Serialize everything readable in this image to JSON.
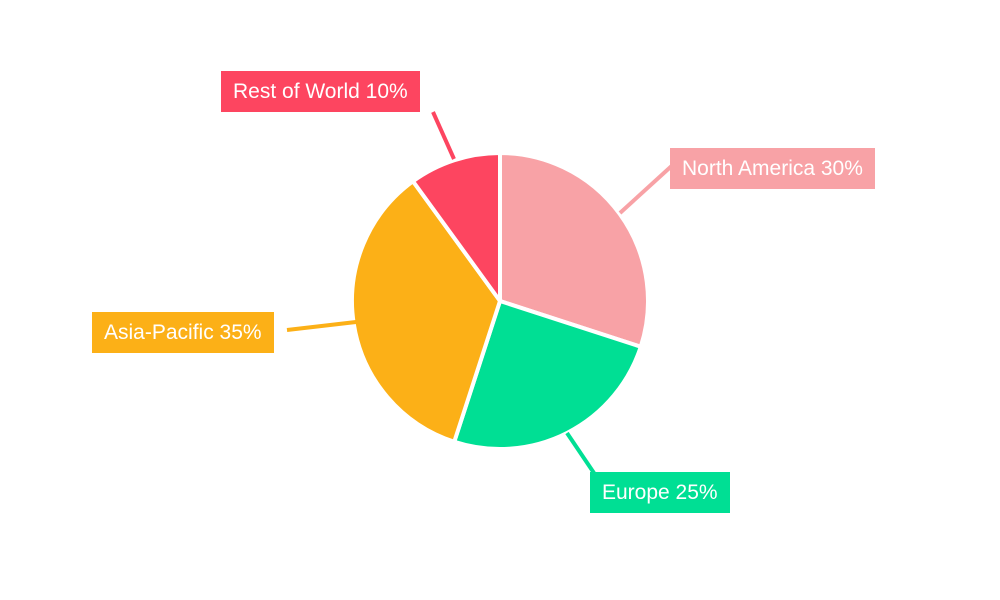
{
  "page": {
    "background_color": "#ffffff",
    "title": ""
  },
  "chart_data": {
    "type": "pie",
    "title": "",
    "unit": "%",
    "label_format": "{label} {value}%",
    "direction": "clockwise",
    "start_angle_deg": 0,
    "legend_position": "none",
    "label_style": "callout-boxes-with-leader-lines",
    "label_text_color": "#ffffff",
    "series": [
      {
        "label": "North America",
        "value": 30,
        "color": "#F8A2A6"
      },
      {
        "label": "Europe",
        "value": 25,
        "color": "#00DF94"
      },
      {
        "label": "Asia-Pacific",
        "value": 35,
        "color": "#FCB017"
      },
      {
        "label": "Rest of World",
        "value": 10,
        "color": "#FD4560"
      }
    ]
  }
}
